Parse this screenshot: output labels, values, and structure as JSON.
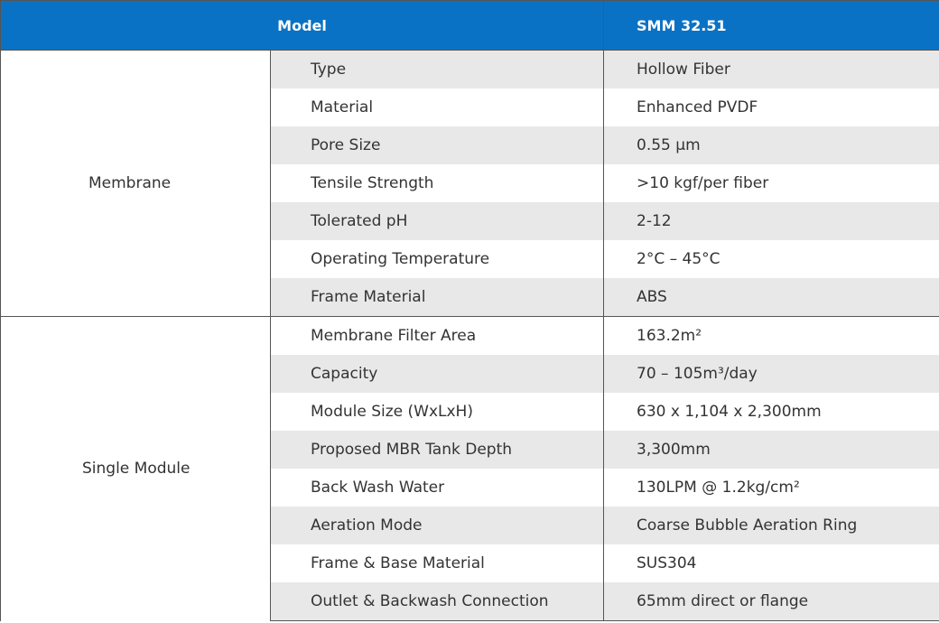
{
  "header": {
    "model_label": "Model",
    "model_value": "SMM 32.51"
  },
  "groups": {
    "membrane": {
      "label": "Membrane",
      "rows": [
        {
          "param": "Type",
          "value": "Hollow Fiber"
        },
        {
          "param": "Material",
          "value": "Enhanced PVDF"
        },
        {
          "param": "Pore Size",
          "value": "0.55 μm"
        },
        {
          "param": "Tensile Strength",
          "value": ">10 kgf/per fiber"
        },
        {
          "param": "Tolerated pH",
          "value": "2-12"
        },
        {
          "param": "Operating Temperature",
          "value": "2°C – 45°C"
        },
        {
          "param": "Frame Material",
          "value": "ABS"
        }
      ]
    },
    "single_module": {
      "label": "Single Module",
      "rows": [
        {
          "param": "Membrane Filter Area",
          "value": "163.2m²"
        },
        {
          "param": "Capacity",
          "value": "70 – 105m³/day"
        },
        {
          "param": "Module Size (WxLxH)",
          "value": "630 x 1,104 x 2,300mm"
        },
        {
          "param": "Proposed MBR Tank Depth",
          "value": "3,300mm"
        },
        {
          "param": "Back Wash Water",
          "value": "130LPM @ 1.2kg/cm²"
        },
        {
          "param": "Aeration Mode",
          "value": "Coarse Bubble Aeration Ring"
        },
        {
          "param": "Frame & Base Material",
          "value": "SUS304"
        },
        {
          "param": "Outlet & Backwash Connection",
          "value": "65mm direct or flange"
        }
      ]
    }
  },
  "colors": {
    "header_bg": "#0a72c4",
    "header_text": "#ffffff",
    "stripe": "#e8e8e8",
    "border": "#555555"
  }
}
